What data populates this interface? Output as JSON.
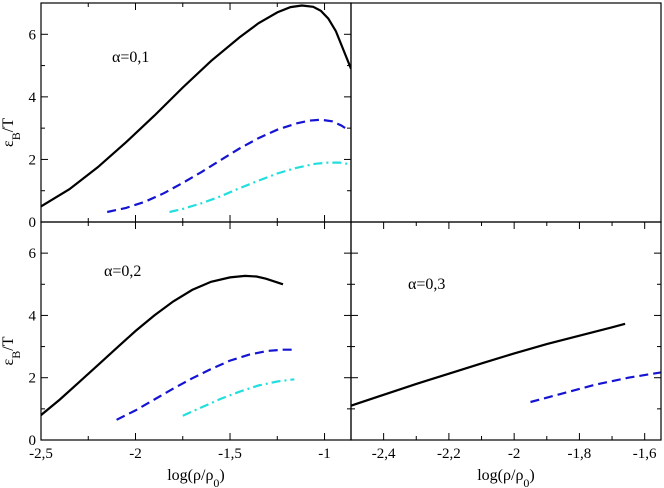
{
  "colors": {
    "black": "#000000",
    "blue": "#1414d2",
    "cyan": "#22dede",
    "frame": "#000000"
  },
  "chart_data": [
    {
      "type": "line",
      "panel": "top-left",
      "annotation": "α=0,1",
      "ylabel_main": "ε",
      "ylabel_sub": "B",
      "ylabel_tail": "/T",
      "xlim": [
        -2.5,
        -0.86
      ],
      "ylim": [
        0,
        7
      ],
      "yticks": [
        0,
        2,
        4,
        6
      ],
      "ytick_labels": [
        "0",
        "2",
        "4",
        "6"
      ],
      "xticks": [
        -2.5,
        -2,
        -1.5,
        -1
      ],
      "series": [
        {
          "name": "black",
          "style": "solid",
          "color": "#000000",
          "x": [
            -2.5,
            -2.35,
            -2.2,
            -2.05,
            -1.9,
            -1.75,
            -1.6,
            -1.45,
            -1.35,
            -1.25,
            -1.18,
            -1.12,
            -1.06,
            -1.02,
            -0.98,
            -0.94,
            -0.9,
            -0.86
          ],
          "y": [
            0.5,
            1.05,
            1.75,
            2.55,
            3.4,
            4.3,
            5.15,
            5.9,
            6.35,
            6.7,
            6.87,
            6.92,
            6.88,
            6.75,
            6.5,
            6.1,
            5.5,
            4.9
          ]
        },
        {
          "name": "blue",
          "style": "dashed",
          "color": "#1414d2",
          "x": [
            -2.15,
            -2.05,
            -1.95,
            -1.85,
            -1.75,
            -1.65,
            -1.55,
            -1.45,
            -1.35,
            -1.25,
            -1.15,
            -1.08,
            -1.02,
            -0.96,
            -0.91,
            -0.87
          ],
          "y": [
            0.32,
            0.45,
            0.65,
            0.92,
            1.25,
            1.6,
            1.98,
            2.35,
            2.68,
            2.95,
            3.15,
            3.24,
            3.27,
            3.22,
            3.08,
            2.92
          ]
        },
        {
          "name": "cyan",
          "style": "dashdot",
          "color": "#22dede",
          "x": [
            -1.82,
            -1.75,
            -1.65,
            -1.55,
            -1.45,
            -1.35,
            -1.25,
            -1.15,
            -1.05,
            -0.98,
            -0.92,
            -0.87
          ],
          "y": [
            0.32,
            0.42,
            0.6,
            0.82,
            1.08,
            1.32,
            1.55,
            1.73,
            1.86,
            1.9,
            1.9,
            1.85
          ]
        }
      ]
    },
    {
      "type": "empty",
      "panel": "top-right"
    },
    {
      "type": "line",
      "panel": "bottom-left",
      "annotation": "α=0,2",
      "ylabel_main": "ε",
      "ylabel_sub": "B",
      "ylabel_tail": "/T",
      "xlabel_main": "log(ρ/ρ",
      "xlabel_sub": "0",
      "xlabel_tail": ")",
      "xlim": [
        -2.5,
        -0.86
      ],
      "ylim": [
        0,
        7
      ],
      "yticks": [
        0,
        2,
        4,
        6
      ],
      "ytick_labels": [
        "0",
        "2",
        "4",
        "6"
      ],
      "xticks": [
        -2.5,
        -2,
        -1.5,
        -1
      ],
      "xtick_labels": [
        "-2,5",
        "-2",
        "-1,5",
        "-1"
      ],
      "series": [
        {
          "name": "black",
          "style": "solid",
          "color": "#000000",
          "x": [
            -2.5,
            -2.4,
            -2.3,
            -2.2,
            -2.1,
            -2.0,
            -1.9,
            -1.8,
            -1.7,
            -1.6,
            -1.5,
            -1.42,
            -1.36,
            -1.31,
            -1.26,
            -1.22
          ],
          "y": [
            0.8,
            1.3,
            1.85,
            2.4,
            2.95,
            3.5,
            4.0,
            4.45,
            4.82,
            5.08,
            5.22,
            5.27,
            5.25,
            5.18,
            5.08,
            5.0
          ]
        },
        {
          "name": "blue",
          "style": "dashed",
          "color": "#1414d2",
          "x": [
            -2.1,
            -2.0,
            -1.9,
            -1.8,
            -1.7,
            -1.6,
            -1.5,
            -1.4,
            -1.3,
            -1.22,
            -1.16
          ],
          "y": [
            0.65,
            0.95,
            1.3,
            1.65,
            1.98,
            2.28,
            2.55,
            2.74,
            2.86,
            2.9,
            2.9
          ]
        },
        {
          "name": "cyan",
          "style": "dashdot",
          "color": "#22dede",
          "x": [
            -1.75,
            -1.65,
            -1.55,
            -1.45,
            -1.35,
            -1.25,
            -1.16
          ],
          "y": [
            0.78,
            1.05,
            1.32,
            1.55,
            1.75,
            1.88,
            1.95
          ]
        }
      ]
    },
    {
      "type": "line",
      "panel": "bottom-right",
      "annotation": "α=0,3",
      "xlabel_main": "log(ρ/ρ",
      "xlabel_sub": "0",
      "xlabel_tail": ")",
      "xlim": [
        -2.5,
        -1.55
      ],
      "ylim": [
        0,
        7
      ],
      "yticks": [
        0,
        2,
        4,
        6
      ],
      "xticks": [
        -2.4,
        -2.2,
        -2,
        -1.8,
        -1.6
      ],
      "xtick_labels": [
        "-2,4",
        "-2,2",
        "-2",
        "-1,8",
        "-1,6"
      ],
      "series": [
        {
          "name": "black",
          "style": "solid",
          "color": "#000000",
          "x": [
            -2.5,
            -2.4,
            -2.3,
            -2.2,
            -2.1,
            -2.0,
            -1.9,
            -1.8,
            -1.7,
            -1.66
          ],
          "y": [
            1.1,
            1.45,
            1.8,
            2.13,
            2.46,
            2.78,
            3.08,
            3.35,
            3.62,
            3.73
          ]
        },
        {
          "name": "blue",
          "style": "dashed",
          "color": "#1414d2",
          "x": [
            -1.95,
            -1.85,
            -1.75,
            -1.65,
            -1.55
          ],
          "y": [
            1.22,
            1.5,
            1.78,
            2.0,
            2.17
          ]
        }
      ]
    }
  ]
}
